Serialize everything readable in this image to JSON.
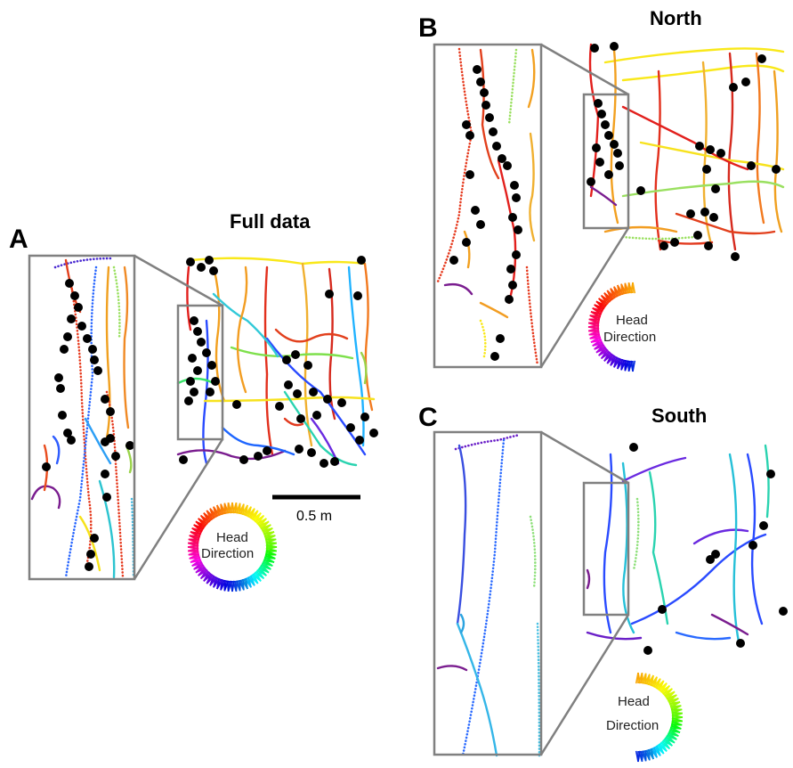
{
  "panels": [
    {
      "letter": "A",
      "title": "Full data",
      "hd_word1": "Head",
      "hd_word2": "Direction",
      "scale_label": "0.5 m"
    },
    {
      "letter": "B",
      "title": "North",
      "hd_word1": "Head",
      "hd_word2": "Direction"
    },
    {
      "letter": "C",
      "title": "South",
      "hd_word1": "Head",
      "hd_word2": "Direction"
    }
  ],
  "colors": {
    "frame": "#808080",
    "spike": "#000000",
    "background": "#ffffff"
  },
  "color_wheel": {
    "description_hue_order": [
      "yellow",
      "orange",
      "red",
      "purple",
      "blue",
      "cyan",
      "green"
    ]
  }
}
